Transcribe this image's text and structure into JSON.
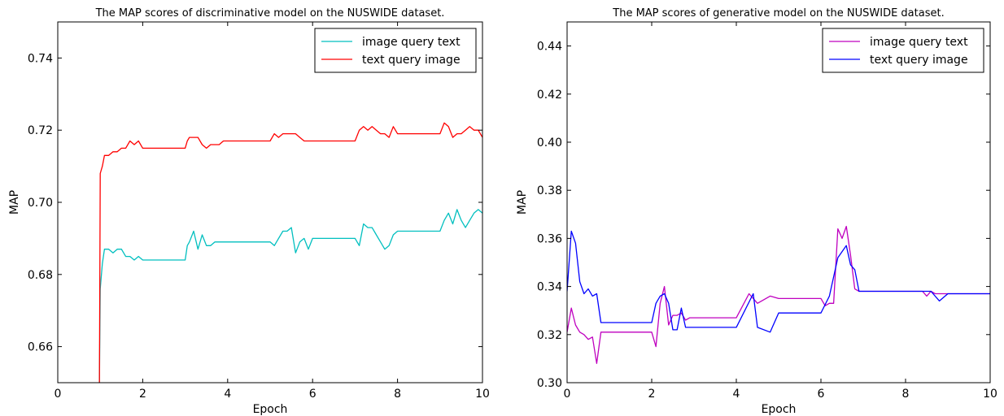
{
  "chart_data": [
    {
      "type": "line",
      "title": "The MAP scores of discriminative model on the NUSWIDE dataset.",
      "xlabel": "Epoch",
      "ylabel": "MAP",
      "xlim": [
        0,
        10
      ],
      "ylim": [
        0.65,
        0.75
      ],
      "xticks": [
        0,
        2,
        4,
        6,
        8,
        10
      ],
      "xtick_labels": [
        "0",
        "2",
        "4",
        "6",
        "8",
        "10"
      ],
      "yticks": [
        0.66,
        0.68,
        0.7,
        0.72,
        0.74
      ],
      "ytick_labels": [
        "0.66",
        "0.68",
        "0.70",
        "0.72",
        "0.74"
      ],
      "grid": false,
      "legend_position": "top-right",
      "series": [
        {
          "name": "image query text",
          "color": "#00bfbf",
          "x": [
            0.98,
            1.0,
            1.05,
            1.1,
            1.2,
            1.3,
            1.4,
            1.5,
            1.6,
            1.7,
            1.8,
            1.9,
            2.0,
            2.5,
            3.0,
            3.05,
            3.1,
            3.2,
            3.3,
            3.4,
            3.5,
            3.6,
            3.7,
            3.8,
            3.9,
            4.0,
            4.5,
            5.0,
            5.1,
            5.2,
            5.3,
            5.4,
            5.5,
            5.6,
            5.7,
            5.8,
            5.9,
            6.0,
            6.5,
            7.0,
            7.1,
            7.2,
            7.3,
            7.4,
            7.5,
            7.6,
            7.7,
            7.8,
            7.9,
            8.0,
            8.5,
            9.0,
            9.1,
            9.2,
            9.3,
            9.4,
            9.5,
            9.6,
            9.7,
            9.8,
            9.9,
            10.0
          ],
          "y": [
            0.65,
            0.676,
            0.683,
            0.687,
            0.687,
            0.686,
            0.687,
            0.687,
            0.685,
            0.685,
            0.684,
            0.685,
            0.684,
            0.684,
            0.684,
            0.688,
            0.689,
            0.692,
            0.687,
            0.691,
            0.688,
            0.688,
            0.689,
            0.689,
            0.689,
            0.689,
            0.689,
            0.689,
            0.688,
            0.69,
            0.692,
            0.692,
            0.693,
            0.686,
            0.689,
            0.69,
            0.687,
            0.69,
            0.69,
            0.69,
            0.688,
            0.694,
            0.693,
            0.693,
            0.691,
            0.689,
            0.687,
            0.688,
            0.691,
            0.692,
            0.692,
            0.692,
            0.695,
            0.697,
            0.694,
            0.698,
            0.695,
            0.693,
            0.695,
            0.697,
            0.698,
            0.697
          ]
        },
        {
          "name": "text query image",
          "color": "#ff0000",
          "x": [
            0.98,
            1.0,
            1.05,
            1.1,
            1.2,
            1.3,
            1.4,
            1.5,
            1.6,
            1.7,
            1.8,
            1.9,
            2.0,
            2.5,
            3.0,
            3.05,
            3.1,
            3.2,
            3.3,
            3.4,
            3.5,
            3.6,
            3.7,
            3.8,
            3.9,
            4.0,
            4.5,
            5.0,
            5.1,
            5.2,
            5.3,
            5.4,
            5.5,
            5.6,
            5.7,
            5.8,
            5.9,
            6.0,
            6.5,
            7.0,
            7.1,
            7.2,
            7.3,
            7.4,
            7.5,
            7.6,
            7.7,
            7.8,
            7.9,
            8.0,
            8.5,
            9.0,
            9.1,
            9.2,
            9.3,
            9.4,
            9.5,
            9.6,
            9.7,
            9.8,
            9.9,
            10.0
          ],
          "y": [
            0.65,
            0.708,
            0.71,
            0.713,
            0.713,
            0.714,
            0.714,
            0.715,
            0.715,
            0.717,
            0.716,
            0.717,
            0.715,
            0.715,
            0.715,
            0.717,
            0.718,
            0.718,
            0.718,
            0.716,
            0.715,
            0.716,
            0.716,
            0.716,
            0.717,
            0.717,
            0.717,
            0.717,
            0.719,
            0.718,
            0.719,
            0.719,
            0.719,
            0.719,
            0.718,
            0.717,
            0.717,
            0.717,
            0.717,
            0.717,
            0.72,
            0.721,
            0.72,
            0.721,
            0.72,
            0.719,
            0.719,
            0.718,
            0.721,
            0.719,
            0.719,
            0.719,
            0.722,
            0.721,
            0.718,
            0.719,
            0.719,
            0.72,
            0.721,
            0.72,
            0.72,
            0.718
          ]
        }
      ]
    },
    {
      "type": "line",
      "title": "The MAP scores of generative model on the NUSWIDE dataset.",
      "xlabel": "Epoch",
      "ylabel": "MAP",
      "xlim": [
        0,
        10
      ],
      "ylim": [
        0.3,
        0.45
      ],
      "xticks": [
        0,
        2,
        4,
        6,
        8,
        10
      ],
      "xtick_labels": [
        "0",
        "2",
        "4",
        "6",
        "8",
        "10"
      ],
      "yticks": [
        0.3,
        0.32,
        0.34,
        0.36,
        0.38,
        0.4,
        0.42,
        0.44
      ],
      "ytick_labels": [
        "0.30",
        "0.32",
        "0.34",
        "0.36",
        "0.38",
        "0.40",
        "0.42",
        "0.44"
      ],
      "grid": false,
      "legend_position": "top-right",
      "series": [
        {
          "name": "image query text",
          "color": "#bf00bf",
          "x": [
            0.0,
            0.1,
            0.2,
            0.3,
            0.4,
            0.5,
            0.6,
            0.7,
            0.8,
            0.9,
            1.0,
            1.5,
            2.0,
            2.1,
            2.2,
            2.3,
            2.4,
            2.5,
            2.6,
            2.7,
            2.8,
            2.9,
            3.0,
            3.5,
            4.0,
            4.3,
            4.5,
            4.8,
            5.0,
            5.5,
            6.0,
            6.1,
            6.2,
            6.3,
            6.4,
            6.5,
            6.6,
            6.7,
            6.8,
            6.9,
            7.0,
            7.5,
            8.0,
            8.2,
            8.4,
            8.5,
            8.6,
            8.7,
            8.8,
            8.9,
            9.0,
            9.5,
            10.0
          ],
          "y": [
            0.321,
            0.331,
            0.324,
            0.321,
            0.32,
            0.318,
            0.319,
            0.308,
            0.321,
            0.321,
            0.321,
            0.321,
            0.321,
            0.315,
            0.333,
            0.34,
            0.324,
            0.328,
            0.328,
            0.329,
            0.326,
            0.327,
            0.327,
            0.327,
            0.327,
            0.337,
            0.333,
            0.336,
            0.335,
            0.335,
            0.335,
            0.332,
            0.333,
            0.333,
            0.364,
            0.36,
            0.365,
            0.353,
            0.339,
            0.338,
            0.338,
            0.338,
            0.338,
            0.338,
            0.338,
            0.336,
            0.338,
            0.337,
            0.337,
            0.337,
            0.337,
            0.337,
            0.337
          ]
        },
        {
          "name": "text query image",
          "color": "#0000ff",
          "x": [
            0.0,
            0.1,
            0.2,
            0.3,
            0.4,
            0.5,
            0.6,
            0.7,
            0.8,
            0.9,
            1.0,
            1.5,
            2.0,
            2.1,
            2.2,
            2.3,
            2.4,
            2.5,
            2.6,
            2.7,
            2.8,
            2.9,
            3.0,
            3.5,
            4.0,
            4.4,
            4.5,
            4.8,
            5.0,
            5.5,
            6.0,
            6.2,
            6.4,
            6.6,
            6.7,
            6.8,
            6.9,
            7.0,
            7.5,
            8.0,
            8.2,
            8.4,
            8.6,
            8.8,
            9.0,
            9.5,
            10.0
          ],
          "y": [
            0.338,
            0.363,
            0.358,
            0.342,
            0.337,
            0.339,
            0.336,
            0.337,
            0.325,
            0.325,
            0.325,
            0.325,
            0.325,
            0.333,
            0.336,
            0.337,
            0.333,
            0.322,
            0.322,
            0.331,
            0.323,
            0.323,
            0.323,
            0.323,
            0.323,
            0.337,
            0.323,
            0.321,
            0.329,
            0.329,
            0.329,
            0.336,
            0.352,
            0.357,
            0.349,
            0.347,
            0.338,
            0.338,
            0.338,
            0.338,
            0.338,
            0.338,
            0.338,
            0.334,
            0.337,
            0.337,
            0.337
          ]
        }
      ]
    }
  ]
}
